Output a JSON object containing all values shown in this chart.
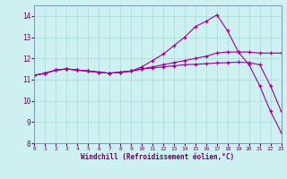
{
  "xlabel": "Windchill (Refroidissement éolien,°C)",
  "background_color": "#cff0f0",
  "grid_color": "#aadddd",
  "line_color": "#990099",
  "x_values": [
    0,
    1,
    2,
    3,
    4,
    5,
    6,
    7,
    8,
    9,
    10,
    11,
    12,
    13,
    14,
    15,
    16,
    17,
    18,
    19,
    20,
    21,
    22,
    23
  ],
  "line1": [
    11.2,
    11.3,
    11.45,
    11.5,
    11.45,
    11.4,
    11.35,
    11.3,
    11.35,
    11.4,
    11.6,
    11.9,
    12.2,
    12.6,
    13.0,
    13.5,
    13.75,
    14.05,
    13.3,
    12.3,
    11.7,
    10.7,
    9.5,
    8.5
  ],
  "line2": [
    11.2,
    11.3,
    11.45,
    11.5,
    11.45,
    11.4,
    11.35,
    11.3,
    11.35,
    11.4,
    11.5,
    11.6,
    11.7,
    11.8,
    11.9,
    12.0,
    12.1,
    12.25,
    12.3,
    12.3,
    12.3,
    12.25,
    12.25,
    12.25
  ],
  "line3": [
    11.2,
    11.3,
    11.45,
    11.5,
    11.45,
    11.4,
    11.35,
    11.3,
    11.35,
    11.4,
    11.5,
    11.55,
    11.6,
    11.65,
    11.7,
    11.72,
    11.75,
    11.78,
    11.8,
    11.82,
    11.8,
    11.7,
    10.7,
    9.5
  ],
  "ylim": [
    8,
    14.5
  ],
  "xlim": [
    0,
    23
  ],
  "yticks": [
    8,
    9,
    10,
    11,
    12,
    13,
    14
  ],
  "xticks": [
    0,
    1,
    2,
    3,
    4,
    5,
    6,
    7,
    8,
    9,
    10,
    11,
    12,
    13,
    14,
    15,
    16,
    17,
    18,
    19,
    20,
    21,
    22,
    23
  ]
}
